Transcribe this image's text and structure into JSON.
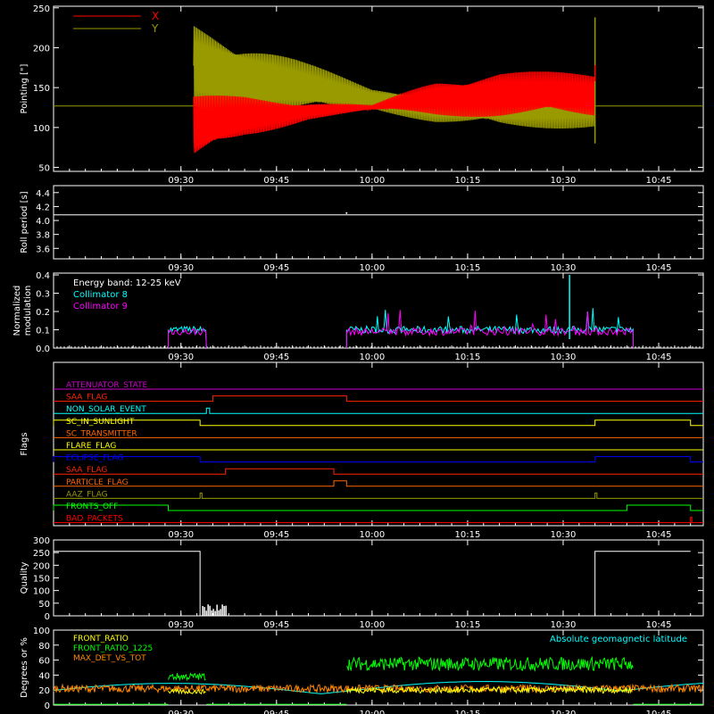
{
  "time_ticks": [
    "09:30",
    "09:45",
    "10:00",
    "10:15",
    "10:30",
    "10:45"
  ],
  "chart_data": [
    {
      "type": "line",
      "ylabel": "Pointing [\"]",
      "ylim": [
        45,
        252
      ],
      "yticks": [
        "50",
        "100",
        "150",
        "200",
        "250"
      ],
      "legend": [
        {
          "name": "X",
          "color": "#ff0000"
        },
        {
          "name": "Y",
          "color": "#999900"
        }
      ],
      "notes": "Oscillating X/Y pointing between ~09:32 and ~10:35; flat ~127 outside",
      "envelope_x": {
        "t": [
          "09:32",
          "09:40",
          "09:50",
          "10:00",
          "10:10",
          "10:20",
          "10:35"
        ],
        "low": [
          55,
          85,
          110,
          122,
          115,
          112,
          112
        ],
        "high": [
          140,
          140,
          133,
          128,
          160,
          172,
          168
        ]
      },
      "envelope_y": {
        "t": [
          "09:32",
          "09:40",
          "09:50",
          "10:00",
          "10:10",
          "10:20",
          "10:35"
        ],
        "low": [
          120,
          115,
          118,
          123,
          105,
          96,
          100
        ],
        "high": [
          235,
          212,
          180,
          150,
          148,
          156,
          158
        ]
      },
      "baseline": 127
    },
    {
      "type": "line",
      "ylabel": "Roll period [s]",
      "ylim": [
        3.45,
        4.5
      ],
      "yticks": [
        "3.6",
        "3.8",
        "4.0",
        "4.2",
        "4.4"
      ],
      "values": {
        "t": [
          "09:10",
          "10:50"
        ],
        "y": [
          4.08,
          4.08
        ]
      }
    },
    {
      "type": "line",
      "ylabel": "Normalized modulation",
      "ylim": [
        0,
        0.41
      ],
      "yticks": [
        "0.0",
        "0.1",
        "0.2",
        "0.3",
        "0.4"
      ],
      "annotation": "Energy band: 12-25 keV",
      "series": [
        {
          "name": "Collimator 8",
          "color": "#00ffff",
          "segments": [
            [
              "09:28",
              "09:34"
            ],
            [
              "09:56",
              "10:41"
            ]
          ],
          "level": 0.1
        },
        {
          "name": "Collimator 9",
          "color": "#ff00ff",
          "segments": [
            [
              "09:28",
              "09:34"
            ],
            [
              "09:56",
              "10:41"
            ]
          ],
          "level": 0.09
        }
      ]
    },
    {
      "type": "line",
      "ylabel": "Flags",
      "flags": [
        {
          "name": "ATTENUATOR_STATE",
          "color": "#cc00cc",
          "changes": []
        },
        {
          "name": "SAA_FLAG",
          "color": "#ff2200",
          "changes": [
            [
              "09:35",
              "09:56"
            ]
          ]
        },
        {
          "name": "NON_SOLAR_EVENT",
          "color": "#00ffff",
          "changes": [
            [
              "09:34",
              "09:34.5"
            ]
          ]
        },
        {
          "name": "SC_IN_SUNLIGHT",
          "color": "#ffff00",
          "changes": [
            [
              "09:10",
              "09:33"
            ],
            [
              "10:35",
              "10:50"
            ]
          ]
        },
        {
          "name": "SC_TRANSMITTER",
          "color": "#ff6600",
          "changes": []
        },
        {
          "name": "FLARE_FLAG",
          "color": "#ffff00",
          "changes": []
        },
        {
          "name": "ECLIPSE_FLAG",
          "color": "#0000ff",
          "changes": [
            [
              "09:10",
              "09:33"
            ],
            [
              "10:35",
              "10:50"
            ]
          ]
        },
        {
          "name": "SAA_FLAG",
          "color": "#ff2200",
          "changes": [
            [
              "09:37",
              "09:54"
            ]
          ]
        },
        {
          "name": "PARTICLE_FLAG",
          "color": "#ff6600",
          "changes": [
            [
              "09:54",
              "09:56"
            ]
          ]
        },
        {
          "name": "AAZ_FLAG",
          "color": "#999900",
          "changes": [
            [
              "09:33",
              "09:33.3"
            ],
            [
              "10:35",
              "10:35.3"
            ]
          ]
        },
        {
          "name": "FRONTS_OFF",
          "color": "#00ff00",
          "changes": [
            [
              "09:10",
              "09:28"
            ],
            [
              "10:40",
              "10:50"
            ]
          ]
        },
        {
          "name": "BAD_PACKETS",
          "color": "#ff0000",
          "changes": [
            [
              "10:50",
              "10:50.2"
            ]
          ]
        }
      ]
    },
    {
      "type": "line",
      "ylabel": "Quality",
      "ylim": [
        0,
        300
      ],
      "yticks": [
        "0",
        "50",
        "100",
        "150",
        "200",
        "250",
        "300"
      ],
      "values": {
        "t": [
          "09:10",
          "09:33",
          "09:33",
          "10:35",
          "10:35",
          "10:50"
        ],
        "y": [
          255,
          255,
          0,
          0,
          255,
          255
        ]
      }
    },
    {
      "type": "line",
      "ylabel": "Degrees or %",
      "ylim": [
        0,
        100
      ],
      "yticks": [
        "0",
        "20",
        "40",
        "60",
        "80",
        "100"
      ],
      "series": [
        {
          "name": "FRONT_RATIO",
          "color": "#ffff00"
        },
        {
          "name": "FRONT_RATIO_1225",
          "color": "#00ff00"
        },
        {
          "name": "MAX_DET_VS_TOT",
          "color": "#ff8800"
        },
        {
          "name": "Absolute geomagnetic latitude",
          "color": "#00ffff"
        }
      ]
    }
  ]
}
